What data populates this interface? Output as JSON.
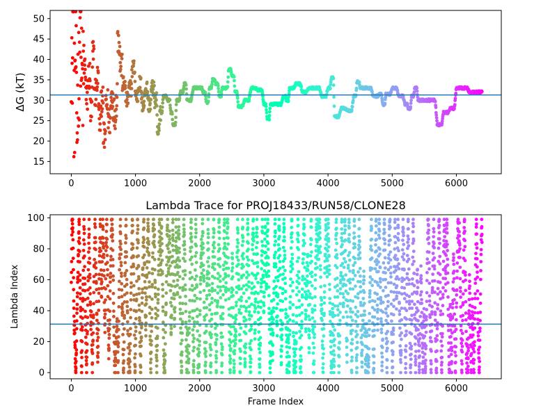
{
  "chart_data": [
    {
      "type": "scatter",
      "title": "",
      "xlabel": "",
      "ylabel": "ΔG (kT)",
      "xlim": [
        -330,
        6700
      ],
      "ylim": [
        12,
        52
      ],
      "xticks": [
        0,
        1000,
        2000,
        3000,
        4000,
        5000,
        6000
      ],
      "xtick_labels": [
        "0",
        "1000",
        "2000",
        "3000",
        "4000",
        "5000",
        "6000"
      ],
      "yticks": [
        15,
        20,
        25,
        30,
        35,
        40,
        45,
        50
      ],
      "ytick_labels": [
        "15",
        "20",
        "25",
        "30",
        "35",
        "40",
        "45",
        "50"
      ],
      "reference_line": {
        "y": 31.3,
        "color": "#1f77b4"
      },
      "colormap": "rainbow",
      "frame_count": 6400,
      "grid": false,
      "anchor_points": [
        [
          0,
          44
        ],
        [
          15,
          17
        ],
        [
          20,
          52
        ],
        [
          40,
          30
        ],
        [
          60,
          41
        ],
        [
          80,
          22
        ],
        [
          100,
          36
        ],
        [
          130,
          48
        ],
        [
          160,
          34
        ],
        [
          200,
          38
        ],
        [
          230,
          30
        ],
        [
          260,
          36
        ],
        [
          300,
          27
        ],
        [
          330,
          41
        ],
        [
          360,
          32
        ],
        [
          400,
          35
        ],
        [
          430,
          25
        ],
        [
          470,
          31
        ],
        [
          500,
          21
        ],
        [
          540,
          29
        ],
        [
          580,
          25
        ],
        [
          620,
          31
        ],
        [
          660,
          27
        ],
        [
          700,
          30
        ],
        [
          720,
          45
        ],
        [
          760,
          39
        ],
        [
          800,
          34
        ],
        [
          850,
          30
        ],
        [
          900,
          33
        ],
        [
          950,
          38
        ],
        [
          1000,
          31
        ],
        [
          1050,
          34
        ],
        [
          1100,
          29
        ],
        [
          1150,
          33
        ],
        [
          1200,
          29
        ],
        [
          1250,
          33
        ],
        [
          1300,
          30
        ],
        [
          1340,
          22
        ],
        [
          1380,
          27
        ],
        [
          1430,
          31
        ],
        [
          1500,
          30
        ],
        [
          1550,
          27
        ],
        [
          1580,
          24
        ],
        [
          1640,
          30
        ],
        [
          1700,
          32
        ],
        [
          1760,
          34
        ],
        [
          1800,
          30
        ],
        [
          1900,
          33
        ],
        [
          2000,
          33
        ],
        [
          2050,
          32
        ],
        [
          2100,
          29.5
        ],
        [
          2150,
          33
        ],
        [
          2200,
          35
        ],
        [
          2250,
          34
        ],
        [
          2300,
          31
        ],
        [
          2350,
          33
        ],
        [
          2400,
          33
        ],
        [
          2450,
          37.5
        ],
        [
          2500,
          36
        ],
        [
          2550,
          32
        ],
        [
          2600,
          28.5
        ],
        [
          2700,
          30
        ],
        [
          2800,
          33
        ],
        [
          2900,
          32.5
        ],
        [
          3000,
          29
        ],
        [
          3050,
          25.5
        ],
        [
          3100,
          29
        ],
        [
          3200,
          29
        ],
        [
          3300,
          31
        ],
        [
          3350,
          30
        ],
        [
          3400,
          33
        ],
        [
          3500,
          34
        ],
        [
          3600,
          32
        ],
        [
          3700,
          33
        ],
        [
          3800,
          33
        ],
        [
          3900,
          31
        ],
        [
          4000,
          33
        ],
        [
          4050,
          35.5
        ],
        [
          4100,
          26
        ],
        [
          4200,
          28
        ],
        [
          4300,
          27.5
        ],
        [
          4400,
          31
        ],
        [
          4450,
          34.5
        ],
        [
          4500,
          33
        ],
        [
          4600,
          33
        ],
        [
          4700,
          31
        ],
        [
          4800,
          31.5
        ],
        [
          4850,
          29
        ],
        [
          4900,
          31.5
        ],
        [
          5000,
          33
        ],
        [
          5100,
          31
        ],
        [
          5200,
          29
        ],
        [
          5250,
          28
        ],
        [
          5300,
          31
        ],
        [
          5350,
          33
        ],
        [
          5400,
          30
        ],
        [
          5500,
          30
        ],
        [
          5600,
          30
        ],
        [
          5700,
          24
        ],
        [
          5800,
          27
        ],
        [
          5900,
          28
        ],
        [
          6000,
          33
        ],
        [
          6100,
          33
        ],
        [
          6200,
          32
        ],
        [
          6300,
          32
        ],
        [
          6400,
          32
        ]
      ]
    },
    {
      "type": "scatter",
      "title": "Lambda Trace for PROJ18433/RUN58/CLONE28",
      "xlabel": "Frame Index",
      "ylabel": "Lambda Index",
      "xlim": [
        -330,
        6700
      ],
      "ylim": [
        -4,
        102
      ],
      "xticks": [
        0,
        1000,
        2000,
        3000,
        4000,
        5000,
        6000
      ],
      "xtick_labels": [
        "0",
        "1000",
        "2000",
        "3000",
        "4000",
        "5000",
        "6000"
      ],
      "yticks": [
        0,
        20,
        40,
        60,
        80,
        100
      ],
      "ytick_labels": [
        "0",
        "20",
        "40",
        "60",
        "80",
        "100"
      ],
      "reference_line": {
        "y": 31.3,
        "color": "#1f77b4"
      },
      "colormap": "rainbow",
      "frame_count": 6400,
      "value_range": [
        0,
        99
      ],
      "grid": false
    }
  ]
}
